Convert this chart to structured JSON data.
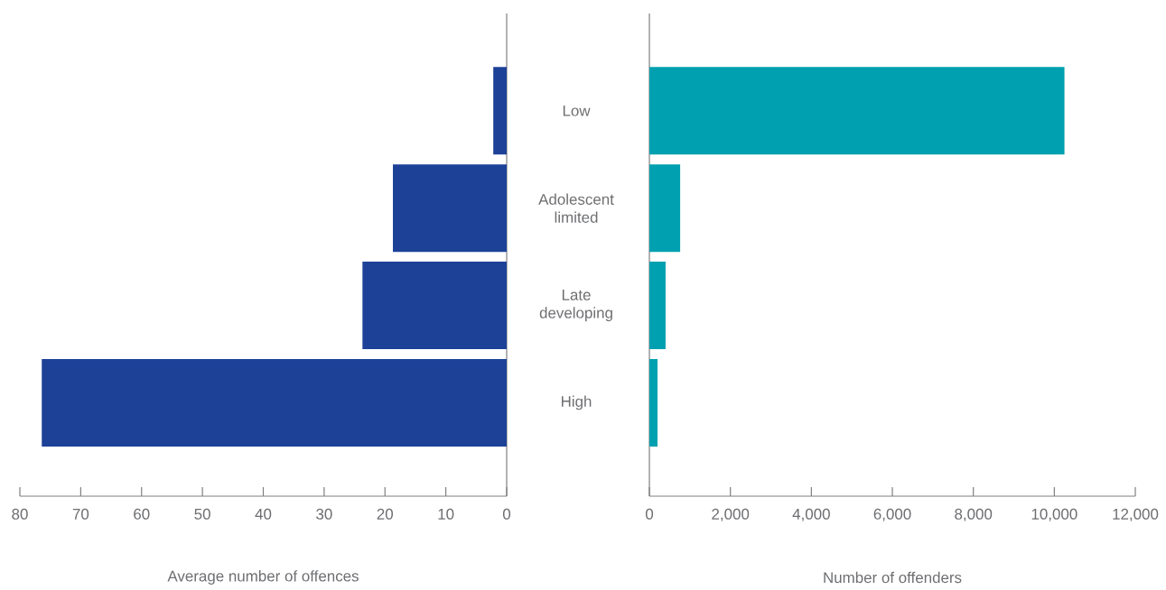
{
  "chart_data": [
    {
      "type": "bar",
      "orientation": "horizontal",
      "xlabel": "Average number of offences",
      "categories": [
        null,
        null,
        null,
        null
      ],
      "values": [
        2.2,
        18.7,
        23.7,
        76.4
      ],
      "color": "#1c4197",
      "xlim": [
        80,
        0
      ],
      "xticks": [
        80,
        70,
        60,
        50,
        40,
        30,
        20,
        10,
        0
      ],
      "tick_labels": "x"
    },
    {
      "type": "bar",
      "orientation": "horizontal",
      "xlabel": "Number of offenders",
      "categories": [
        "Low",
        "Adolescent limited",
        "Late developing",
        "High"
      ],
      "values": [
        10250,
        760,
        400,
        200
      ],
      "color": "#00a0b0",
      "xlim": [
        0,
        12000
      ],
      "xticks": [
        0,
        {
          "value": 2000,
          "label": "2,000"
        },
        {
          "value": 4000,
          "label": "4,000"
        },
        {
          "value": 6000,
          "label": "6,000"
        },
        {
          "value": 8000,
          "label": "8,000"
        },
        {
          "value": 10000,
          "label": "10,000"
        },
        {
          "value": 12000,
          "label": "12,000"
        }
      ]
    }
  ]
}
